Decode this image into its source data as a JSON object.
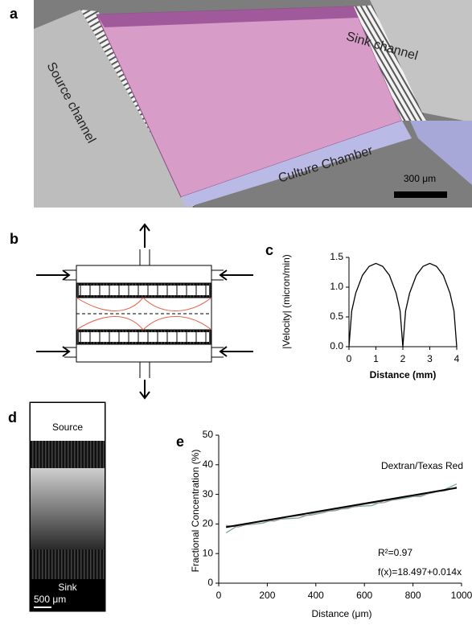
{
  "panel_a": {
    "label": "a",
    "source_channel": "Source channel",
    "sink_channel": "Sink channel",
    "culture_chamber": "Culture Chamber",
    "scale_bar": "300 μm"
  },
  "panel_b": {
    "label": "b"
  },
  "panel_d": {
    "label": "d",
    "source": "Source",
    "sink": "Sink",
    "scale_bar": "500 μm"
  },
  "chart_data": [
    {
      "type": "line",
      "panel_label": "c",
      "y_label": "|Velocity| (micron/min)",
      "x_label": "Distance (mm)",
      "series": [
        {
          "color": "#000000",
          "x": [
            0,
            0.1,
            0.25,
            0.5,
            0.75,
            1,
            1.25,
            1.5,
            1.75,
            1.9,
            2,
            2.1,
            2.25,
            2.5,
            2.75,
            3,
            3.25,
            3.5,
            3.75,
            3.9,
            4
          ],
          "values": [
            0,
            0.6,
            0.9,
            1.2,
            1.35,
            1.4,
            1.35,
            1.2,
            0.9,
            0.6,
            0,
            0.6,
            0.9,
            1.2,
            1.35,
            1.4,
            1.35,
            1.2,
            0.9,
            0.6,
            0
          ]
        }
      ],
      "xlim": [
        0,
        4
      ],
      "ylim": [
        0,
        1.5
      ],
      "xticks": [
        0,
        1,
        2,
        3,
        4
      ],
      "yticks": [
        {
          "value": 0,
          "label": "0.0"
        },
        {
          "value": 0.5,
          "label": "0.5"
        },
        {
          "value": 1,
          "label": "1.0"
        },
        {
          "value": 1.5,
          "label": "1.5"
        }
      ]
    },
    {
      "type": "line",
      "panel_label": "e",
      "title": "Dextran/Texas Red",
      "y_label": "Fractional Concentration (%)",
      "x_label": "Distance (μm)",
      "annotations": [
        "R²=0.97",
        "f(x)=18.497+0.014x"
      ],
      "series": [
        {
          "color": "#7fa393",
          "x": [
            30,
            80,
            130,
            180,
            230,
            280,
            330,
            380,
            430,
            480,
            530,
            580,
            630,
            680,
            730,
            780,
            830,
            880,
            930,
            980
          ],
          "values": [
            17.0,
            19.5,
            19.8,
            20.3,
            21.5,
            21.8,
            22.0,
            23.4,
            24.2,
            24.5,
            25.6,
            26.0,
            26.2,
            27.8,
            28.2,
            28.9,
            29.7,
            30.5,
            31.6,
            33.5
          ]
        },
        {
          "color": "#9a9a9a",
          "x": [
            30,
            80,
            130,
            180,
            230,
            280,
            330,
            380,
            430,
            480,
            530,
            580,
            630,
            680,
            730,
            780,
            830,
            880,
            930,
            980
          ],
          "values": [
            19.5,
            19.0,
            20.2,
            21.0,
            21.0,
            22.3,
            22.8,
            23.0,
            23.8,
            25.0,
            25.2,
            26.4,
            27.0,
            27.2,
            28.5,
            29.4,
            29.2,
            30.8,
            31.2,
            32.5
          ]
        },
        {
          "color": "#000000",
          "x": [
            30,
            980
          ],
          "values": [
            18.9,
            32.2
          ]
        }
      ],
      "xlim": [
        0,
        1000
      ],
      "ylim": [
        0,
        50
      ],
      "xticks": [
        0,
        200,
        400,
        600,
        800,
        1000
      ],
      "yticks": [
        0,
        10,
        20,
        30,
        40,
        50
      ]
    }
  ]
}
